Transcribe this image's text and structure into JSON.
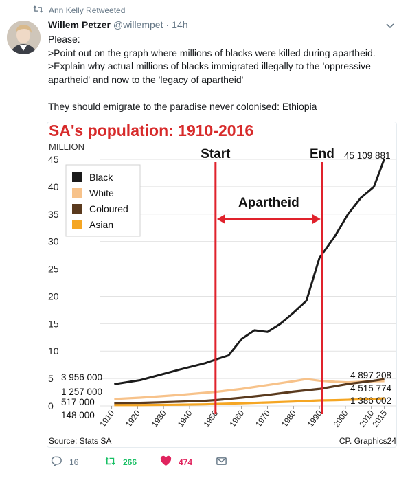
{
  "tweet": {
    "retweeted_by": "Ann Kelly Retweeted",
    "author_name": "Willem Petzer",
    "author_handle": "@willempet",
    "separator": "·",
    "time": "14h",
    "body": "Please:\n>Point out on the graph where millions of blacks were killed during apartheid.\n>Explain why actual millions of blacks immigrated illegally to the 'oppressive apartheid' and now to the 'legacy of apartheid'\n\nThey should emigrate to the paradise never colonised: Ethiopia",
    "actions": {
      "replies": "16",
      "retweets": "266",
      "likes": "474"
    },
    "colors": {
      "retweet": "#17bf63",
      "like": "#e0245e",
      "muted": "#657786"
    },
    "icons": [
      "retweet-icon",
      "avatar",
      "chevron-down-icon",
      "reply-icon",
      "heart-icon",
      "envelope-icon"
    ]
  },
  "chart_data": {
    "type": "line",
    "title": "SA's population: 1910-2016",
    "ylabel": "MILLION",
    "ylim": [
      0,
      45
    ],
    "yticks": [
      "0",
      "5",
      "10",
      "15",
      "20",
      "25",
      "30",
      "35",
      "40",
      "45"
    ],
    "xticks": [
      "1910",
      "1920",
      "1930",
      "1940",
      "1950",
      "1960",
      "1970",
      "1980",
      "1990",
      "2000",
      "2010",
      "2015"
    ],
    "series": [
      {
        "name": "Black",
        "color": "#1a1a1a",
        "x": [
          1911,
          1921,
          1936,
          1946,
          1951,
          1955,
          1960,
          1965,
          1970,
          1975,
          1980,
          1985,
          1990,
          1996,
          2001,
          2006,
          2011,
          2015
        ],
        "y": [
          3.96,
          4.7,
          6.6,
          7.8,
          8.6,
          9.2,
          12.2,
          13.8,
          13.5,
          15.0,
          17.0,
          19.2,
          27.0,
          31.0,
          35.0,
          38.0,
          40.0,
          45.11
        ]
      },
      {
        "name": "White",
        "color": "#f7c28a",
        "x": [
          1911,
          1921,
          1936,
          1946,
          1951,
          1960,
          1970,
          1980,
          1985,
          1990,
          1996,
          2001,
          2006,
          2011,
          2015
        ],
        "y": [
          1.26,
          1.5,
          2.0,
          2.4,
          2.6,
          3.1,
          3.8,
          4.5,
          4.9,
          4.6,
          4.4,
          4.3,
          4.4,
          4.5,
          4.52
        ]
      },
      {
        "name": "Coloured",
        "color": "#5a3a1e",
        "x": [
          1911,
          1921,
          1936,
          1946,
          1951,
          1960,
          1970,
          1980,
          1990,
          1996,
          2001,
          2006,
          2011,
          2015
        ],
        "y": [
          0.52,
          0.55,
          0.77,
          0.93,
          1.1,
          1.5,
          2.0,
          2.6,
          3.1,
          3.6,
          4.0,
          4.3,
          4.6,
          4.9
        ]
      },
      {
        "name": "Asian",
        "color": "#f5a623",
        "x": [
          1911,
          1921,
          1936,
          1946,
          1951,
          1960,
          1970,
          1980,
          1990,
          1996,
          2001,
          2006,
          2011,
          2015
        ],
        "y": [
          0.15,
          0.16,
          0.22,
          0.29,
          0.37,
          0.48,
          0.63,
          0.79,
          1.0,
          1.05,
          1.12,
          1.2,
          1.27,
          1.39
        ]
      }
    ],
    "labels": {
      "black_start": "3 956 000",
      "white_start": "1 257 000",
      "coloured_start": "517 000",
      "asian_start": "148 000",
      "black_end": "45 109 881",
      "coloured_end": "4 897 208",
      "white_end": "4 515 774",
      "asian_end": "1 386 002"
    },
    "annotations": {
      "start": {
        "label": "Start",
        "year": 1950
      },
      "end": {
        "label": "End",
        "year": 1991
      },
      "span_label": "Apartheid",
      "color": "#e0222c"
    },
    "legend_position": "top-left",
    "source": "Source: Stats SA",
    "credit": "CP. Graphics24",
    "title_color": "#d72a2a"
  }
}
